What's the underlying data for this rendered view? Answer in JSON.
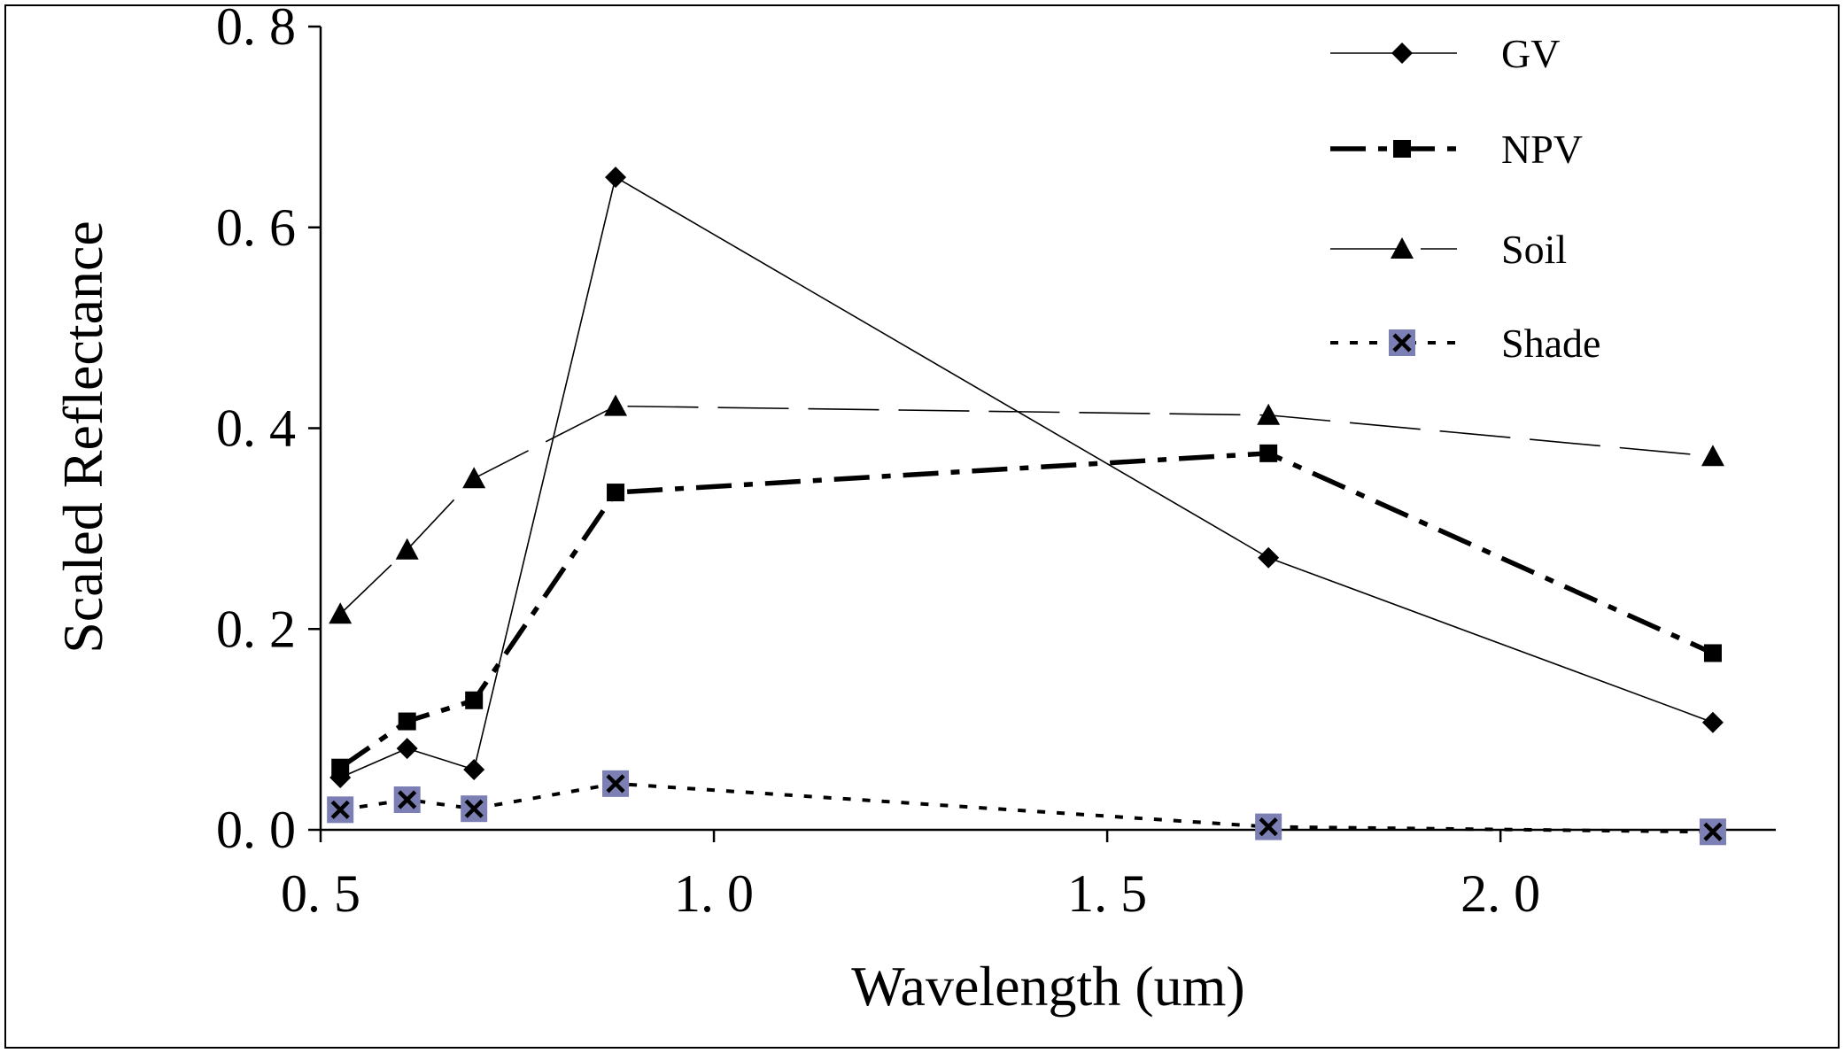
{
  "chart_data": {
    "type": "line",
    "title": "",
    "xlabel": "Wavelength (um)",
    "ylabel": "Scaled Reflectance",
    "xlim": [
      0.5,
      2.35
    ],
    "ylim": [
      0.0,
      0.8
    ],
    "xticks": [
      0.5,
      1.0,
      1.5,
      2.0
    ],
    "xtick_labels": [
      "0. 5",
      "1. 0",
      "1. 5",
      "2. 0"
    ],
    "yticks": [
      0.0,
      0.2,
      0.4,
      0.6,
      0.8
    ],
    "ytick_labels": [
      "0. 0",
      "0. 2",
      "0. 4",
      "0. 6",
      "0. 8"
    ],
    "grid": false,
    "legend_position": "top-right",
    "x": [
      0.525,
      0.61,
      0.695,
      0.875,
      1.705,
      2.27
    ],
    "series": [
      {
        "name": "GV",
        "values": [
          0.052,
          0.081,
          0.06,
          0.65,
          0.271,
          0.107
        ],
        "marker": "diamond",
        "line": "solid-thin",
        "color": "#000000"
      },
      {
        "name": "NPV",
        "values": [
          0.062,
          0.108,
          0.129,
          0.336,
          0.375,
          0.176
        ],
        "marker": "square",
        "line": "dashdot-thick",
        "color": "#000000"
      },
      {
        "name": "Soil",
        "values": [
          0.215,
          0.279,
          0.35,
          0.422,
          0.413,
          0.372
        ],
        "marker": "triangle",
        "line": "longdash-thin",
        "color": "#000000"
      },
      {
        "name": "Shade",
        "values": [
          0.02,
          0.03,
          0.021,
          0.046,
          0.003,
          -0.002
        ],
        "marker": "x-square",
        "line": "dotted",
        "color": "#000000",
        "marker_fill": "#7b7fb4"
      }
    ]
  }
}
